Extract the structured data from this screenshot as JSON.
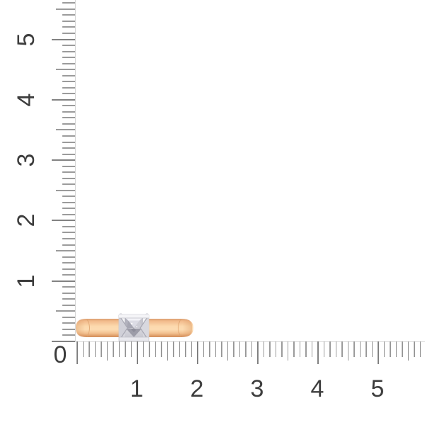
{
  "scene": {
    "type": "product-photo",
    "subject": "rose-gold-diamond-ring-side-view",
    "background": "#ffffff"
  },
  "rulers": {
    "unit": "cm",
    "tick_color": "#9b9b9b",
    "major_tick_color": "#828282",
    "line_color": "#d9d9d9",
    "label_color": "#3d3d3d",
    "zero_label": "0",
    "vertical": {
      "labels": [
        "1",
        "2",
        "3",
        "4",
        "5"
      ]
    },
    "horizontal": {
      "labels": [
        "1",
        "2",
        "3",
        "4",
        "5"
      ]
    }
  },
  "ring": {
    "approx_width_cm": 1.9,
    "approx_height_cm": 0.45,
    "colors": {
      "gold_edge": "#db9e6e",
      "gold_light": "#fcd9ad",
      "gold_dark": "#dd9b67",
      "gold_deep": "#d28f5c",
      "metal_light": "#ffffff",
      "metal_mid": "#e4e4e9",
      "metal_dark": "#cfcfd6",
      "stone_light": "#f2f2f7",
      "stone_mid": "#c9c9d1",
      "stone_dark": "#9c9ca8"
    }
  }
}
